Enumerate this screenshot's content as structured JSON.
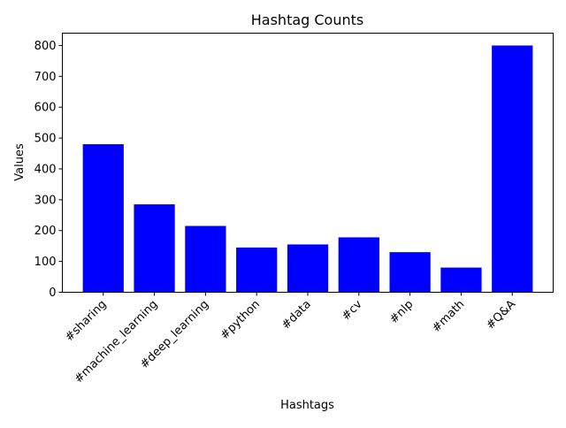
{
  "chart_data": {
    "type": "bar",
    "title": "Hashtag Counts",
    "xlabel": "Hashtags",
    "ylabel": "Values",
    "categories": [
      "#sharing",
      "#machine_learning",
      "#deep_learning",
      "#python",
      "#data",
      "#cv",
      "#nlp",
      "#math",
      "#Q&A"
    ],
    "values": [
      480,
      285,
      215,
      145,
      155,
      178,
      130,
      80,
      800
    ],
    "ylim": [
      0,
      840
    ],
    "yticks": [
      0,
      100,
      200,
      300,
      400,
      500,
      600,
      700,
      800
    ],
    "bar_color": "#0000ff",
    "grid": false
  }
}
